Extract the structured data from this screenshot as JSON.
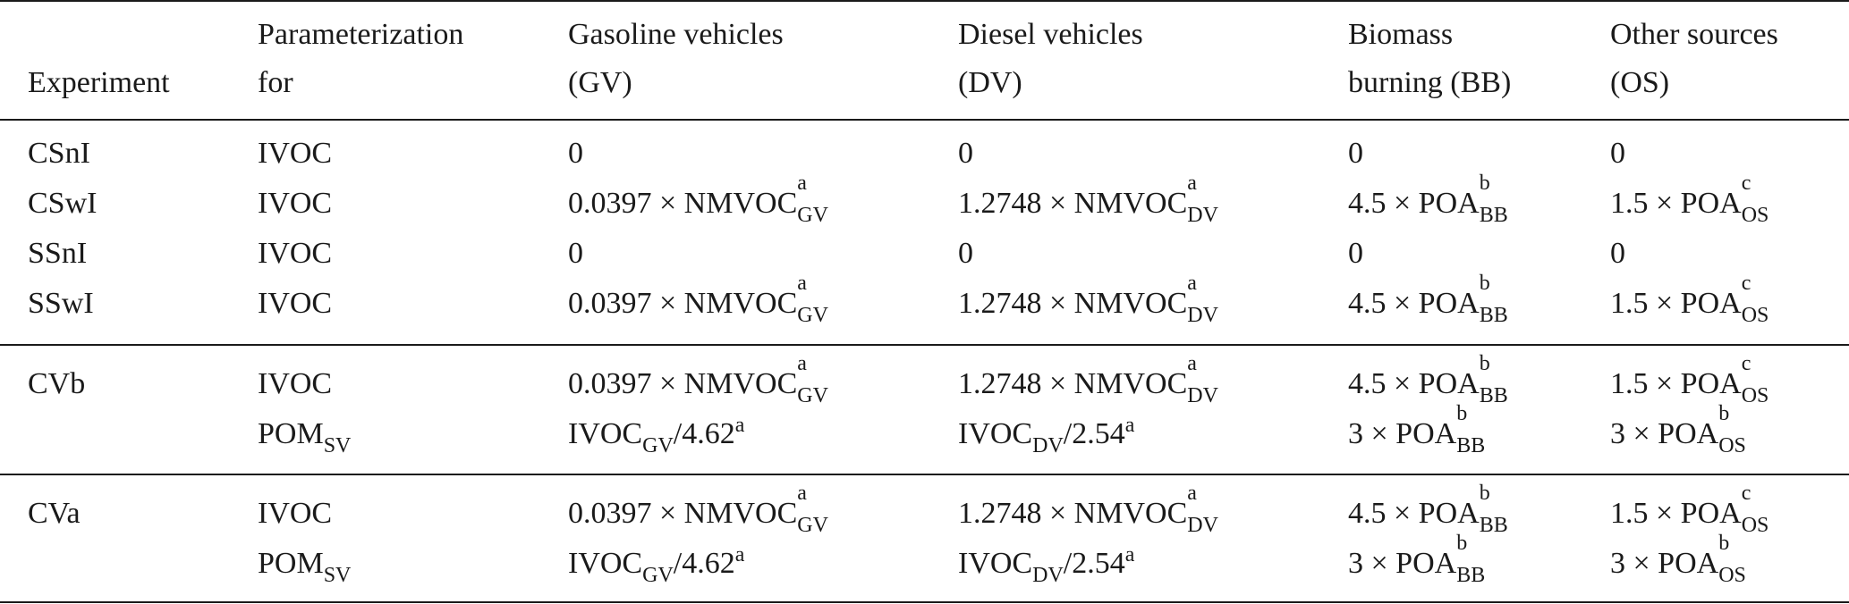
{
  "header": {
    "experiment": "Experiment",
    "param_line1": "Parameterization",
    "param_line2": "for",
    "gv_line1": "Gasoline vehicles",
    "gv_line2": "(GV)",
    "dv_line1": "Diesel vehicles",
    "dv_line2": "(DV)",
    "bb_line1": "Biomass",
    "bb_line2": "burning (BB)",
    "os_line1": "Other sources",
    "os_line2": "(OS)"
  },
  "rows": [
    {
      "exp": "CSnI",
      "param": "IVOC",
      "gv": "0",
      "dv": "0",
      "bb": "0",
      "os": "0"
    },
    {
      "exp": "CSwI",
      "param": "IVOC",
      "gv": {
        "pre": "0.0397 × NMVOC",
        "sup": "a",
        "sub": "GV"
      },
      "dv": {
        "pre": "1.2748 × NMVOC",
        "sup": "a",
        "sub": "DV"
      },
      "bb": {
        "pre": "4.5 × POA",
        "sup": "b",
        "sub": "BB"
      },
      "os": {
        "pre": "1.5 × POA",
        "sup": "c",
        "sub": "OS"
      }
    },
    {
      "exp": "SSnI",
      "param": "IVOC",
      "gv": "0",
      "dv": "0",
      "bb": "0",
      "os": "0"
    },
    {
      "exp": "SSwI",
      "param": "IVOC",
      "gv": {
        "pre": "0.0397 × NMVOC",
        "sup": "a",
        "sub": "GV"
      },
      "dv": {
        "pre": "1.2748 × NMVOC",
        "sup": "a",
        "sub": "DV"
      },
      "bb": {
        "pre": "4.5 × POA",
        "sup": "b",
        "sub": "BB"
      },
      "os": {
        "pre": "1.5 × POA",
        "sup": "c",
        "sub": "OS"
      }
    },
    {
      "exp": "CVb",
      "param": "IVOC",
      "gv": {
        "pre": "0.0397 × NMVOC",
        "sup": "a",
        "sub": "GV"
      },
      "dv": {
        "pre": "1.2748 × NMVOC",
        "sup": "a",
        "sub": "DV"
      },
      "bb": {
        "pre": "4.5 × POA",
        "sup": "b",
        "sub": "BB"
      },
      "os": {
        "pre": "1.5 × POA",
        "sup": "c",
        "sub": "OS"
      }
    },
    {
      "exp": "",
      "param_base": "POM",
      "param_sub": "SV",
      "gv_ivoc": {
        "base": "IVOC",
        "sub": "GV",
        "rest": "/4.62",
        "sup": "a"
      },
      "dv_ivoc": {
        "base": "IVOC",
        "sub": "DV",
        "rest": "/2.54",
        "sup": "a"
      },
      "bb": {
        "pre": "3 × POA",
        "sup": "b",
        "sub": "BB"
      },
      "os": {
        "pre": "3 × POA",
        "sup": "b",
        "sub": "OS"
      }
    },
    {
      "exp": "CVa",
      "param": "IVOC",
      "gv": {
        "pre": "0.0397 × NMVOC",
        "sup": "a",
        "sub": "GV"
      },
      "dv": {
        "pre": "1.2748 × NMVOC",
        "sup": "a",
        "sub": "DV"
      },
      "bb": {
        "pre": "4.5 × POA",
        "sup": "b",
        "sub": "BB"
      },
      "os": {
        "pre": "1.5 × POA",
        "sup": "c",
        "sub": "OS"
      }
    },
    {
      "exp": "",
      "param_base": "POM",
      "param_sub": "SV",
      "gv_ivoc": {
        "base": "IVOC",
        "sub": "GV",
        "rest": "/4.62",
        "sup": "a"
      },
      "dv_ivoc": {
        "base": "IVOC",
        "sub": "DV",
        "rest": "/2.54",
        "sup": "a"
      },
      "bb": {
        "pre": "3 × POA",
        "sup": "b",
        "sub": "BB"
      },
      "os": {
        "pre": "3 × POA",
        "sup": "b",
        "sub": "OS"
      }
    }
  ]
}
